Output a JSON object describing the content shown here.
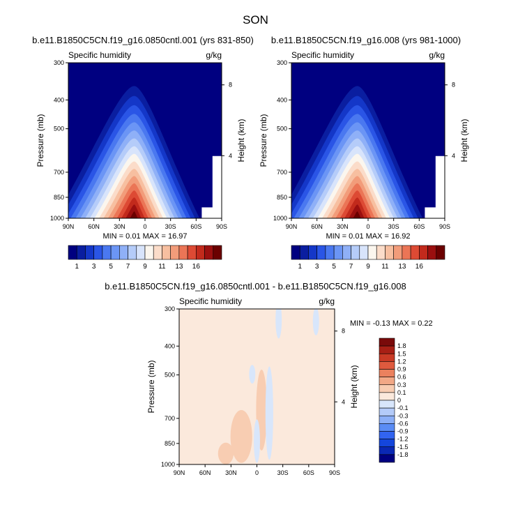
{
  "title": "SON",
  "colors": {
    "abs": [
      "#000080",
      "#0a1ea0",
      "#1437c8",
      "#2a55e6",
      "#4a78f0",
      "#6b95f5",
      "#8fb0f7",
      "#b5ccf9",
      "#d8e4fb",
      "#fbf6ee",
      "#fbdcc9",
      "#f7bfa0",
      "#f29c7a",
      "#eb7556",
      "#dd4a34",
      "#c22a1c",
      "#9b0f0f",
      "#6b0000"
    ],
    "diff": [
      "#000080",
      "#0a28b4",
      "#1446dc",
      "#3264f0",
      "#5a8cf5",
      "#8caff7",
      "#b4cbf9",
      "#d8e6fb",
      "#fbe9dc",
      "#f8cdb2",
      "#f2a886",
      "#eb815e",
      "#df5a3e",
      "#c93a25",
      "#a81f15",
      "#7a0a0a"
    ]
  },
  "chart_data": [
    {
      "type": "heatmap",
      "panel": "top-left",
      "title": "b.e11.B1850C5CN.f19_g16.0850cntl.001 (yrs 831-850)",
      "left_label": "Specific humidity",
      "right_label": "g/kg",
      "xlabel": "",
      "ylabel": "Pressure (mb)",
      "ylabel_right": "Height (km)",
      "x_ticks": [
        "90N",
        "60N",
        "30N",
        "0",
        "30S",
        "60S",
        "90S"
      ],
      "y_ticks": [
        "300",
        "400",
        "500",
        "700",
        "850",
        "1000"
      ],
      "y_ticks_right": [
        "8",
        "4"
      ],
      "ylim": [
        1000,
        300
      ],
      "min_max_text": "MIN =  0.01  MAX =  16.97",
      "min": 0.01,
      "max": 16.97,
      "colorbar_labels": [
        "1",
        "3",
        "5",
        "7",
        "9",
        "11",
        "13",
        "16"
      ]
    },
    {
      "type": "heatmap",
      "panel": "top-right",
      "title": "b.e11.B1850C5CN.f19_g16.008 (yrs 981-1000)",
      "left_label": "Specific humidity",
      "right_label": "g/kg",
      "xlabel": "",
      "ylabel": "Pressure (mb)",
      "ylabel_right": "Height (km)",
      "x_ticks": [
        "90N",
        "60N",
        "30N",
        "0",
        "30S",
        "60S",
        "90S"
      ],
      "y_ticks": [
        "300",
        "400",
        "500",
        "700",
        "850",
        "1000"
      ],
      "y_ticks_right": [
        "8",
        "4"
      ],
      "ylim": [
        1000,
        300
      ],
      "min_max_text": "MIN =  0.01  MAX =  16.92",
      "min": 0.01,
      "max": 16.92,
      "colorbar_labels": [
        "1",
        "3",
        "5",
        "7",
        "9",
        "11",
        "13",
        "16"
      ]
    },
    {
      "type": "heatmap",
      "panel": "bottom",
      "title": "b.e11.B1850C5CN.f19_g16.0850cntl.001 - b.e11.B1850C5CN.f19_g16.008",
      "left_label": "Specific humidity",
      "right_label": "g/kg",
      "xlabel": "",
      "ylabel": "Pressure (mb)",
      "ylabel_right": "Height (km)",
      "x_ticks": [
        "90N",
        "60N",
        "30N",
        "0",
        "30S",
        "60S",
        "90S"
      ],
      "y_ticks": [
        "300",
        "400",
        "500",
        "700",
        "850",
        "1000"
      ],
      "y_ticks_right": [
        "8",
        "4"
      ],
      "ylim": [
        1000,
        300
      ],
      "min_max_text": "MIN = -0.13  MAX =  0.22",
      "min": -0.13,
      "max": 0.22,
      "colorbar_labels": [
        "1.8",
        "1.5",
        "1.2",
        "0.9",
        "0.6",
        "0.3",
        "0.1",
        "0",
        "-0.1",
        "-0.3",
        "-0.6",
        "-0.9",
        "-1.2",
        "-1.5",
        "-1.8"
      ]
    }
  ]
}
